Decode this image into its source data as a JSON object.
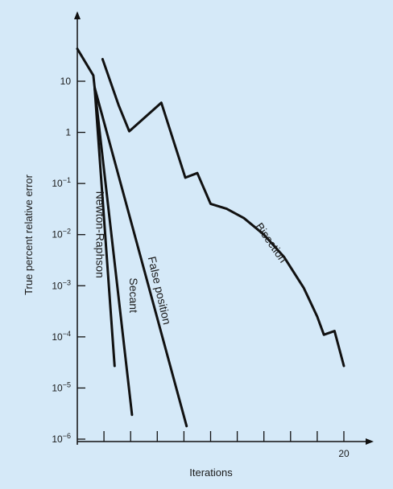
{
  "chart_data": {
    "type": "line",
    "title": "",
    "xlabel": "Iterations",
    "ylabel": "True percent relative error",
    "y_scale": "log",
    "xlim": [
      0,
      20.5
    ],
    "ylim": [
      1e-06,
      100
    ],
    "x_ticks": [
      2,
      4,
      6,
      8,
      10,
      12,
      14,
      16,
      18,
      20
    ],
    "x_tick_labels": [
      {
        "x": 20,
        "text": "20"
      }
    ],
    "y_ticks": [
      {
        "value": 10,
        "base": "10",
        "exp": ""
      },
      {
        "value": 1,
        "base": "1",
        "exp": ""
      },
      {
        "value": 0.1,
        "base": "10",
        "exp": "−1"
      },
      {
        "value": 0.01,
        "base": "10",
        "exp": "−2"
      },
      {
        "value": 0.001,
        "base": "10",
        "exp": "−3"
      },
      {
        "value": 0.0001,
        "base": "10",
        "exp": "−4"
      },
      {
        "value": 1e-05,
        "base": "10",
        "exp": "−5"
      },
      {
        "value": 1e-06,
        "base": "10",
        "exp": "−6"
      }
    ],
    "line_color": "#111111",
    "series": [
      {
        "name": "Newton-Raphson",
        "points": [
          [
            0,
            43
          ],
          [
            1.2,
            13
          ],
          [
            1.3,
            7.5
          ],
          [
            2.8,
            2.7e-05
          ]
        ],
        "label_x": 1.65,
        "label_y": 0.01,
        "label_angle": 90
      },
      {
        "name": "Secant",
        "points": [
          [
            1.3,
            7.5
          ],
          [
            4.1,
            3e-06
          ]
        ],
        "label_x": 4.15,
        "label_y": 0.00065,
        "label_angle": 90
      },
      {
        "name": "False position",
        "points": [
          [
            1.3,
            7.5
          ],
          [
            8.2,
            1.8e-06
          ]
        ],
        "label_x": 6.1,
        "label_y": 0.0008,
        "label_angle": 77
      },
      {
        "name": "Bisection",
        "points": [
          [
            1.9,
            27
          ],
          [
            3.1,
            3.4
          ],
          [
            3.9,
            1.05
          ],
          [
            6.3,
            3.8
          ],
          [
            8.1,
            0.13
          ],
          [
            9.0,
            0.16
          ],
          [
            10.0,
            0.04
          ],
          [
            11.2,
            0.032
          ],
          [
            12.5,
            0.021
          ],
          [
            14.0,
            0.01
          ],
          [
            15.5,
            0.0037
          ],
          [
            17.0,
            0.0009
          ],
          [
            18.0,
            0.00025
          ],
          [
            18.5,
            0.00011
          ],
          [
            19.3,
            0.00013
          ],
          [
            20.0,
            2.7e-05
          ]
        ],
        "label_x": 14.5,
        "label_y": 0.0068,
        "label_angle": 55
      }
    ]
  }
}
